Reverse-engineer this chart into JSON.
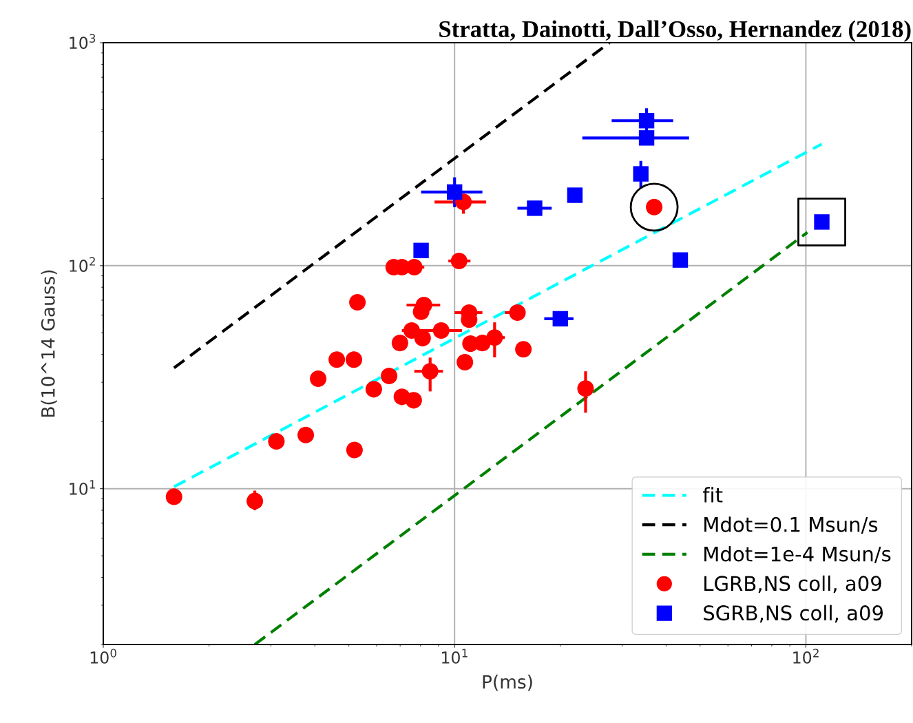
{
  "chart_data": {
    "type": "scatter",
    "title": "Stratta, Dainotti, Dall’Osso, Hernandez (2018)",
    "xlabel": "P(ms)",
    "ylabel": "B(10^14 Gauss)",
    "log": "xy",
    "xlim": [
      1,
      200
    ],
    "ylim": [
      2,
      1000
    ],
    "xticks": [
      {
        "value": 1,
        "label": "10$^{0}$"
      },
      {
        "value": 10,
        "label": "10$^{1}$"
      },
      {
        "value": 100,
        "label": "10$^{2}$"
      }
    ],
    "yticks": [
      {
        "value": 10,
        "label": "10$^{1}$"
      },
      {
        "value": 100,
        "label": "10$^{2}$"
      },
      {
        "value": 1000,
        "label": "10$^{3}$"
      }
    ],
    "grid": true,
    "legend": "bottom right",
    "series": [
      {
        "name": "fit",
        "type": "line",
        "line_style": "dashed",
        "color": "#00ffff",
        "x": [
          1.59,
          111
        ],
        "values": [
          10.2,
          351
        ]
      },
      {
        "name": "Mdot=0.1 Msun/s",
        "type": "line",
        "line_style": "dashed",
        "color": "#000000",
        "x": [
          1.59,
          27.6
        ],
        "values": [
          34.8,
          1000
        ]
      },
      {
        "name": "Mdot=1e-4 Msun/s",
        "type": "line",
        "line_style": "dashed",
        "color": "#008000",
        "x": [
          2.7,
          101
        ],
        "values": [
          2.0,
          141
        ]
      },
      {
        "name": "LGRB,NS coll, a09",
        "marker": "circle",
        "color": "#ff0000",
        "x": [
          1.59,
          2.7,
          3.11,
          3.77,
          4.09,
          4.62,
          5.17,
          5.19,
          5.29,
          5.89,
          6.51,
          6.71,
          7.08,
          7.68,
          6.99,
          7.55,
          8.11,
          9.16,
          8.18,
          8.03,
          8.52,
          7.08,
          7.65,
          10.6,
          10.3,
          11.0,
          11.0,
          11.1,
          12.0,
          13.0,
          10.7,
          15.1,
          15.7,
          23.6,
          37.0
        ],
        "values": [
          9.2,
          8.8,
          16.3,
          17.4,
          31.1,
          37.9,
          37.9,
          14.9,
          68.5,
          27.9,
          32.0,
          98.5,
          98.5,
          98.5,
          45.0,
          51.2,
          47.3,
          51.2,
          66.6,
          62.1,
          33.6,
          25.8,
          24.9,
          193,
          105,
          61.6,
          57.3,
          44.7,
          45,
          47.6,
          36.9,
          61.6,
          42.2,
          28.1,
          183
        ],
        "errors": [
          null,
          [
            8.0,
            9.8
          ],
          null,
          null,
          null,
          null,
          null,
          null,
          null,
          null,
          null,
          null,
          null,
          null,
          null,
          null,
          null,
          null,
          null,
          null,
          [
            27.3,
            38.7
          ],
          null,
          null,
          [
            171,
            208
          ],
          null,
          null,
          null,
          null,
          null,
          [
            38.8,
            55.7
          ],
          null,
          null,
          null,
          [
            21.9,
            33.6
          ],
          null
        ],
        "xerrors": [
          null,
          null,
          null,
          null,
          null,
          null,
          null,
          null,
          null,
          null,
          null,
          null,
          null,
          [
            7.68,
            8.2
          ],
          null,
          null,
          null,
          [
            7.08,
            10.5
          ],
          [
            7.3,
            9.1
          ],
          null,
          [
            7.68,
            9.27
          ],
          null,
          null,
          [
            8.77,
            12.3
          ],
          [
            9.6,
            11.1
          ],
          [
            10.0,
            12.0
          ],
          null,
          null,
          null,
          [
            13.0,
            13.9
          ],
          null,
          [
            13.9,
            15.9
          ],
          null,
          null,
          null
        ]
      },
      {
        "name": "SGRB,NS coll, a09",
        "marker": "square",
        "color": "#0000ff",
        "x": [
          8.03,
          10.0,
          16.9,
          20.0,
          22.0,
          35.2,
          35.2,
          33.9,
          43.9,
          111
        ],
        "values": [
          117,
          214,
          181,
          57.8,
          207,
          447,
          374,
          258,
          106,
          157
        ],
        "errors": [
          null,
          [
            183,
            249
          ],
          null,
          null,
          null,
          [
            400,
            508
          ],
          null,
          [
            222,
            295
          ],
          null,
          null
        ],
        "xerrors": [
          null,
          [
            8.03,
            12.0
          ],
          [
            15.1,
            18.9
          ],
          [
            18.0,
            21.8
          ],
          null,
          [
            28.0,
            41.9
          ],
          [
            23.1,
            46.5
          ],
          null,
          null,
          null
        ]
      }
    ]
  }
}
